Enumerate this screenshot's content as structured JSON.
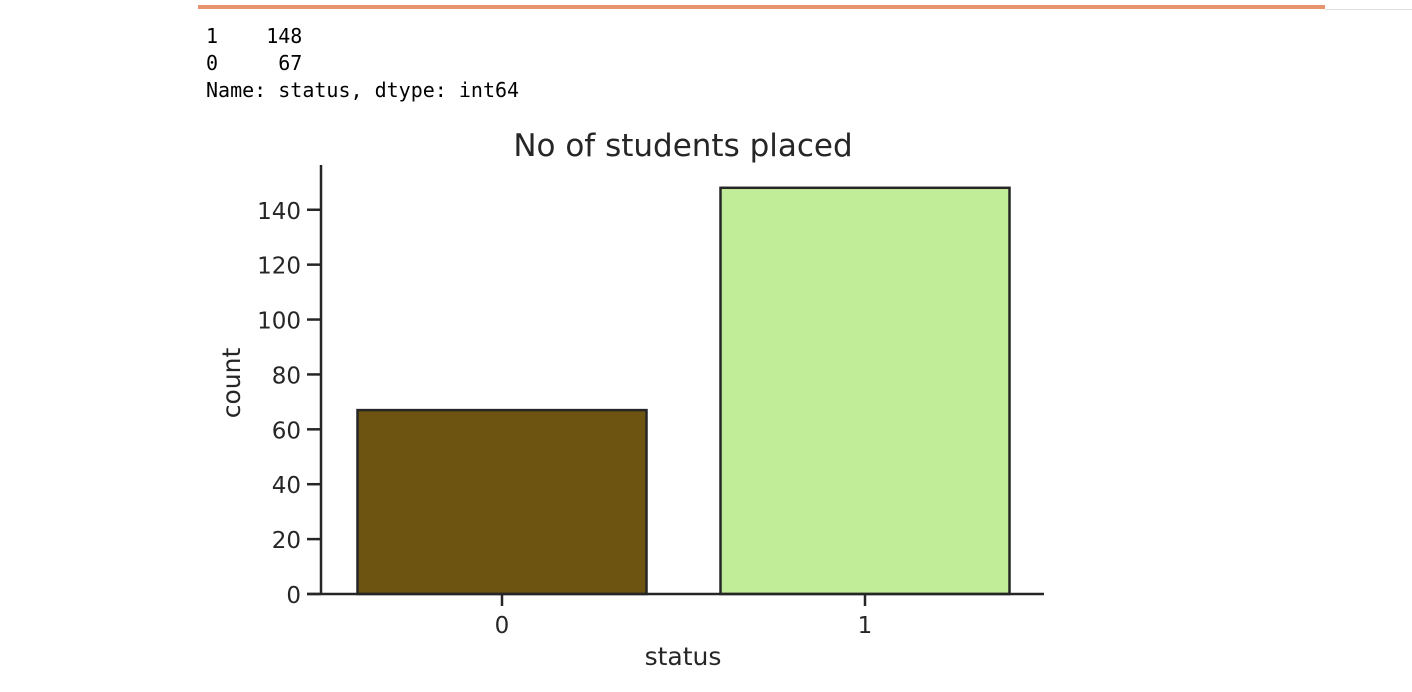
{
  "output": {
    "lines": [
      "1    148",
      "0     67",
      "Name: status, dtype: int64"
    ]
  },
  "colors": {
    "progress_strip": "#e8956f",
    "axis": "#262626",
    "text": "#262626"
  },
  "chart_data": {
    "type": "bar",
    "title": "No of students placed",
    "xlabel": "status",
    "ylabel": "count",
    "categories": [
      "0",
      "1"
    ],
    "values": [
      67,
      148
    ],
    "colors": [
      "#6e5411",
      "#c2ed98"
    ],
    "ylim": [
      0,
      155
    ],
    "yticks": [
      0,
      20,
      40,
      60,
      80,
      100,
      120,
      140
    ],
    "grid": false
  }
}
